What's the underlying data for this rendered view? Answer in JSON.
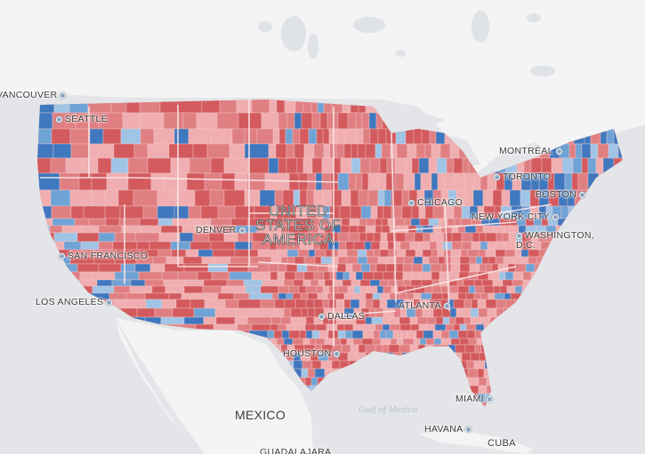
{
  "map": {
    "legend_colors": {
      "strong_rep": "#d35a5d",
      "rep": "#e07f82",
      "lean_rep": "#f0aeb0",
      "lean_dem": "#9fc4e6",
      "dem": "#6fa3d6",
      "strong_dem": "#3f78bf",
      "land": "#f6f6f6",
      "water": "#e4e6e9"
    },
    "country_labels": {
      "usa": "UNITED\nSTATES OF\nAMERICA",
      "mexico": "MEXICO",
      "cuba": "CUBA"
    },
    "water_labels": {
      "gulf": "Gulf of Mexico"
    },
    "cities": {
      "vancouver": "VANCOUVER",
      "seattle": "SEATTLE",
      "san_francisco": "SAN FRANCISCO",
      "los_angeles": "LOS ANGELES",
      "denver": "DENVER",
      "dallas": "DALLAS",
      "houston": "HOUSTON",
      "chicago": "CHICAGO",
      "atlanta": "ATLANTA",
      "miami": "MIAMI",
      "havana": "HAVANA",
      "montreal": "MONTRÉAL",
      "toronto": "TORONTO",
      "boston": "BOSTON",
      "new_york": "NEW YORK CITY",
      "washington": "WASHINGTON,\nD.C.",
      "guadalajara": "GUADALAJARA"
    }
  }
}
